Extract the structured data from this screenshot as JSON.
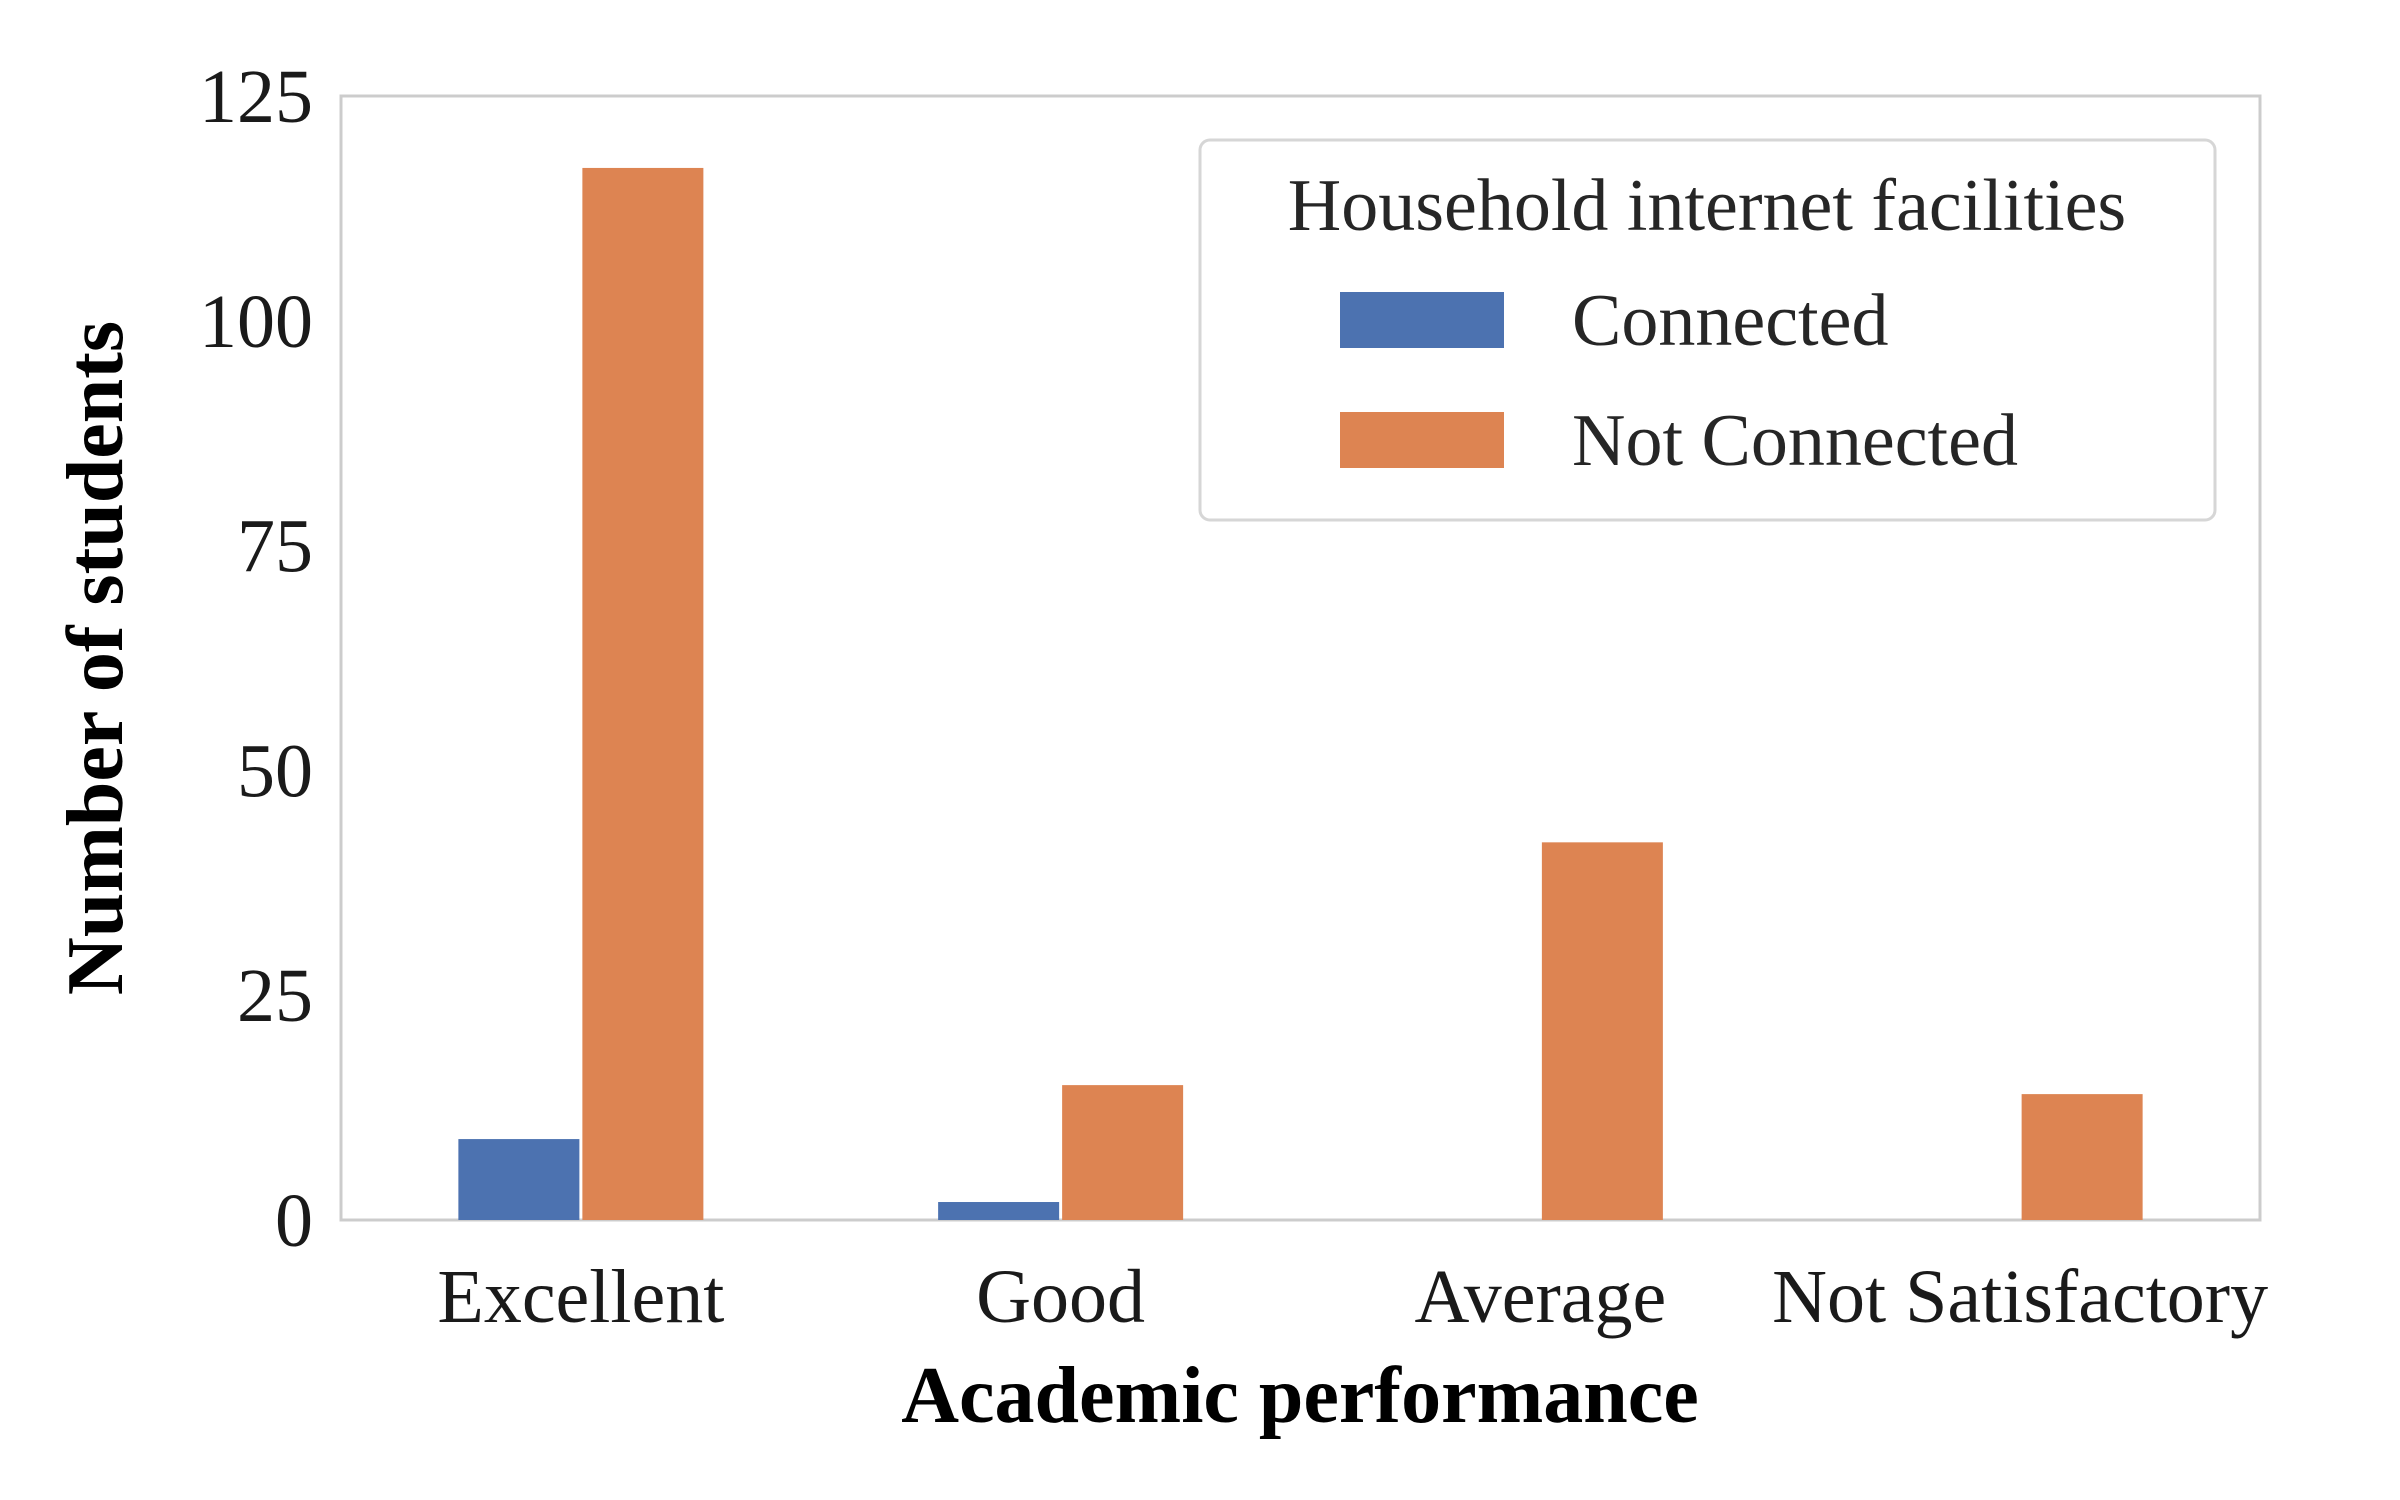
{
  "chart_data": {
    "type": "bar",
    "title": "",
    "xlabel": "Academic performance",
    "ylabel": "Number of students",
    "categories": [
      "Excellent",
      "Good",
      "Average",
      "Not Satisfactory"
    ],
    "series": [
      {
        "name": "Connected",
        "values": [
          9,
          2,
          0,
          0
        ],
        "color": "#4c72b0"
      },
      {
        "name": "Not Connected",
        "values": [
          117,
          15,
          42,
          14
        ],
        "color": "#dd8452"
      }
    ],
    "ylim": [
      0,
      125
    ],
    "yticks": [
      0,
      25,
      50,
      75,
      100,
      125
    ],
    "grid": false,
    "legend": {
      "title": "Household internet facilities",
      "placement": "top-right"
    }
  }
}
